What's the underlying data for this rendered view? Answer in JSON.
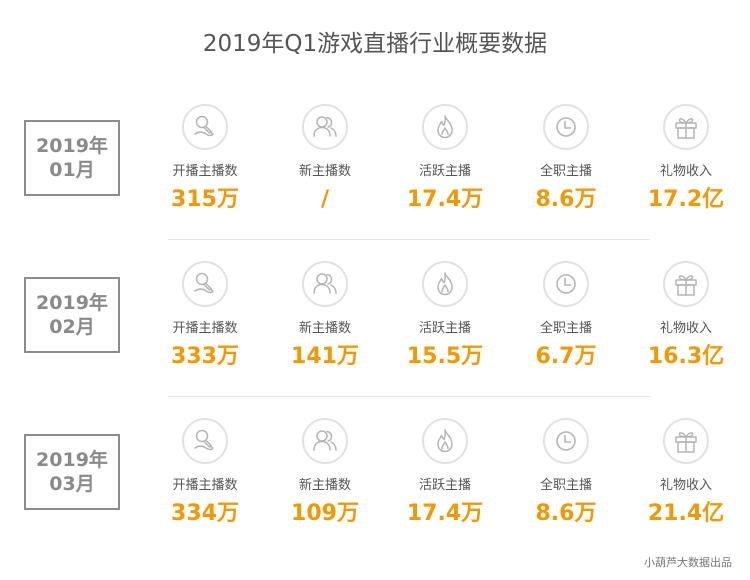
{
  "title": "2019年Q1游戏直播行业概要数据",
  "accent_color": "#f39800",
  "metric_labels": [
    "开播主播数",
    "新主播数",
    "活跃主播",
    "全职主播",
    "礼物收入"
  ],
  "metric_icons": [
    "microphone-icon",
    "users-icon",
    "flame-icon",
    "clock-icon",
    "gift-icon"
  ],
  "rows": [
    {
      "year": "2019年",
      "month": "01月",
      "values": [
        "315万",
        "/",
        "17.4万",
        "8.6万",
        "17.2亿"
      ]
    },
    {
      "year": "2019年",
      "month": "02月",
      "values": [
        "333万",
        "141万",
        "15.5万",
        "6.7万",
        "16.3亿"
      ]
    },
    {
      "year": "2019年",
      "month": "03月",
      "values": [
        "334万",
        "109万",
        "17.4万",
        "8.6万",
        "21.4亿"
      ]
    }
  ],
  "footer": "小葫芦大数据出品"
}
